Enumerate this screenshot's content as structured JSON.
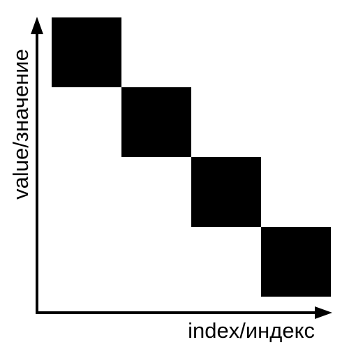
{
  "chart_data": {
    "type": "heatmap",
    "xlabel": "index/индекс",
    "ylabel": "value/значение",
    "x_axis_arrow": true,
    "y_axis_arrow": true,
    "grid": false,
    "ticks": false,
    "legend": "none",
    "color": "#000000",
    "cells": [
      {
        "index": 1,
        "value": 4
      },
      {
        "index": 2,
        "value": 3
      },
      {
        "index": 3,
        "value": 2
      },
      {
        "index": 4,
        "value": 1
      }
    ]
  }
}
